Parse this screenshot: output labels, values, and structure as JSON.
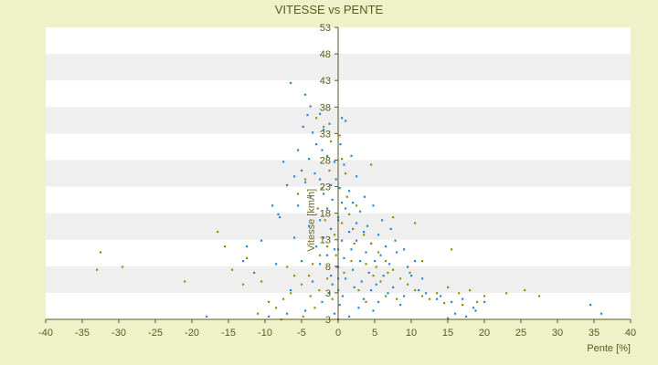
{
  "chart_data": {
    "type": "scatter",
    "title": "VITESSE vs PENTE",
    "xlabel": "Pente [%]",
    "ylabel": "Vitesse [km/h]",
    "xlim": [
      -40,
      40
    ],
    "ylim": [
      3,
      53
    ],
    "x_ticks": [
      -40,
      -35,
      -30,
      -25,
      -20,
      -15,
      -10,
      -5,
      0,
      5,
      10,
      15,
      20,
      25,
      30,
      35,
      40
    ],
    "y_ticks_labeled": [
      "53",
      "48",
      "43",
      "38",
      "33",
      "28",
      "23",
      "18",
      "13",
      "8",
      "3",
      "3"
    ],
    "grid": "horizontal bands",
    "legend": "none",
    "colors": {
      "page_background": "#eef2c8",
      "band_light": "#ffffff",
      "band_dark": "#efefef",
      "text": "#5a5a1e",
      "axis": "#5a5a1e",
      "series_blue": "#2f86d1",
      "series_olive": "#8f8f1a"
    },
    "series": [
      {
        "color_key": "series_blue",
        "points": [
          [
            -6.5,
            43.5
          ],
          [
            -4.5,
            41.5
          ],
          [
            -3.8,
            39.5
          ],
          [
            -4.2,
            38.0
          ],
          [
            -2.5,
            38.2
          ],
          [
            -3.5,
            35.0
          ],
          [
            -2.0,
            35.5
          ],
          [
            -1.2,
            36.5
          ],
          [
            0.5,
            37.5
          ],
          [
            1.0,
            37.0
          ],
          [
            -3.0,
            33.0
          ],
          [
            -2.2,
            32.0
          ],
          [
            -1.5,
            31.0
          ],
          [
            -4.0,
            30.5
          ],
          [
            -0.5,
            30.0
          ],
          [
            0.8,
            29.5
          ],
          [
            -5.0,
            28.5
          ],
          [
            -3.2,
            28.0
          ],
          [
            -2.5,
            27.0
          ],
          [
            -6.0,
            27.5
          ],
          [
            -7.0,
            26.0
          ],
          [
            -4.5,
            26.5
          ],
          [
            -1.0,
            26.0
          ],
          [
            0.2,
            25.5
          ],
          [
            1.5,
            25.0
          ],
          [
            -2.0,
            24.5
          ],
          [
            -3.8,
            24.0
          ],
          [
            -0.8,
            23.5
          ],
          [
            0.5,
            23.0
          ],
          [
            2.0,
            23.0
          ],
          [
            -5.5,
            22.5
          ],
          [
            -1.5,
            22.0
          ],
          [
            1.0,
            22.0
          ],
          [
            3.0,
            21.5
          ],
          [
            -8.0,
            20.5
          ],
          [
            -2.5,
            20.0
          ],
          [
            0.0,
            20.0
          ],
          [
            2.5,
            19.5
          ],
          [
            4.0,
            19.0
          ],
          [
            -4.0,
            19.0
          ],
          [
            -1.0,
            18.5
          ],
          [
            1.5,
            18.0
          ],
          [
            3.5,
            18.0
          ],
          [
            5.5,
            17.5
          ],
          [
            -6.0,
            17.0
          ],
          [
            -2.0,
            17.0
          ],
          [
            0.5,
            16.5
          ],
          [
            2.5,
            16.5
          ],
          [
            4.5,
            16.0
          ],
          [
            6.5,
            15.5
          ],
          [
            -10.5,
            16.5
          ],
          [
            -12.5,
            15.5
          ],
          [
            -3.0,
            15.5
          ],
          [
            -0.5,
            15.0
          ],
          [
            1.8,
            15.0
          ],
          [
            3.8,
            14.5
          ],
          [
            5.8,
            14.0
          ],
          [
            8.0,
            14.5
          ],
          [
            -1.5,
            14.0
          ],
          [
            0.8,
            13.5
          ],
          [
            3.0,
            13.0
          ],
          [
            5.0,
            13.0
          ],
          [
            7.0,
            12.5
          ],
          [
            9.5,
            12.0
          ],
          [
            -5.0,
            13.0
          ],
          [
            -2.5,
            12.5
          ],
          [
            -0.2,
            12.0
          ],
          [
            2.0,
            11.5
          ],
          [
            4.2,
            11.0
          ],
          [
            6.2,
            10.5
          ],
          [
            10.0,
            10.5
          ],
          [
            -8.5,
            12.5
          ],
          [
            -11.5,
            11.0
          ],
          [
            -1.0,
            10.5
          ],
          [
            1.0,
            10.0
          ],
          [
            3.2,
            9.5
          ],
          [
            5.2,
            9.0
          ],
          [
            7.5,
            8.5
          ],
          [
            11.0,
            8.0
          ],
          [
            12.0,
            7.5
          ],
          [
            14.0,
            7.0
          ],
          [
            -3.5,
            9.5
          ],
          [
            -0.8,
            9.0
          ],
          [
            2.2,
            8.5
          ],
          [
            4.5,
            8.0
          ],
          [
            6.8,
            7.5
          ],
          [
            9.0,
            7.0
          ],
          [
            13.5,
            6.5
          ],
          [
            15.5,
            6.0
          ],
          [
            17.0,
            6.5
          ],
          [
            -6.5,
            8.0
          ],
          [
            -1.2,
            7.5
          ],
          [
            0.6,
            7.0
          ],
          [
            3.5,
            6.5
          ],
          [
            5.5,
            6.0
          ],
          [
            8.5,
            5.5
          ],
          [
            18.5,
            5.0
          ],
          [
            20.0,
            6.0
          ],
          [
            -2.2,
            6.0
          ],
          [
            0.2,
            5.5
          ],
          [
            2.8,
            5.0
          ],
          [
            4.8,
            4.5
          ],
          [
            -4.5,
            4.5
          ],
          [
            -0.5,
            4.0
          ],
          [
            1.5,
            3.5
          ],
          [
            -7.0,
            4.0
          ],
          [
            -9.5,
            3.5
          ],
          [
            -10.5,
            2.5
          ],
          [
            -18.0,
            3.5
          ],
          [
            -6.0,
            2.5
          ],
          [
            0.0,
            3.0
          ],
          [
            0.0,
            2.0
          ],
          [
            0.0,
            1.0
          ],
          [
            0.0,
            0.5
          ],
          [
            0.0,
            20.5
          ],
          [
            0.0,
            15.0
          ],
          [
            0.0,
            10.0
          ],
          [
            0.0,
            12.0
          ],
          [
            0.0,
            8.0
          ],
          [
            -0.3,
            27.0
          ],
          [
            16.0,
            4.0
          ],
          [
            17.5,
            3.5
          ],
          [
            18.8,
            4.5
          ],
          [
            15.0,
            3.2
          ],
          [
            14.0,
            2.5
          ],
          [
            34.5,
            5.5
          ],
          [
            36.0,
            4.0
          ],
          [
            -13.0,
            13.0
          ],
          [
            -9.0,
            22.5
          ],
          [
            -8.2,
            21.0
          ],
          [
            -7.5,
            30.0
          ],
          [
            -5.5,
            32.0
          ],
          [
            -4.8,
            36.0
          ],
          [
            0.3,
            33.0
          ],
          [
            1.8,
            31.0
          ],
          [
            2.5,
            27.5
          ],
          [
            3.6,
            24.0
          ],
          [
            4.8,
            22.5
          ],
          [
            6.0,
            20.0
          ],
          [
            7.2,
            18.5
          ],
          [
            7.8,
            16.5
          ],
          [
            9.0,
            15.0
          ],
          [
            10.5,
            13.0
          ],
          [
            11.5,
            10.0
          ]
        ]
      },
      {
        "color_key": "series_olive",
        "points": [
          [
            -33.0,
            11.5
          ],
          [
            -32.5,
            14.5
          ],
          [
            -29.5,
            12.0
          ],
          [
            -21.0,
            9.5
          ],
          [
            -16.5,
            18.0
          ],
          [
            -15.5,
            15.5
          ],
          [
            -13.0,
            9.0
          ],
          [
            -12.5,
            13.5
          ],
          [
            -9.5,
            6.0
          ],
          [
            -8.5,
            5.0
          ],
          [
            -7.5,
            6.5
          ],
          [
            -6.5,
            7.5
          ],
          [
            -5.0,
            9.0
          ],
          [
            -4.0,
            10.5
          ],
          [
            -3.5,
            12.5
          ],
          [
            -2.5,
            14.0
          ],
          [
            -1.5,
            15.5
          ],
          [
            -0.5,
            17.5
          ],
          [
            0.5,
            19.5
          ],
          [
            1.5,
            21.0
          ],
          [
            2.5,
            22.5
          ],
          [
            3.5,
            17.5
          ],
          [
            4.5,
            16.0
          ],
          [
            5.5,
            14.5
          ],
          [
            6.5,
            13.0
          ],
          [
            7.5,
            11.5
          ],
          [
            8.5,
            10.0
          ],
          [
            9.5,
            9.0
          ],
          [
            10.5,
            8.0
          ],
          [
            11.5,
            7.0
          ],
          [
            12.5,
            6.5
          ],
          [
            13.5,
            7.5
          ],
          [
            15.0,
            8.5
          ],
          [
            16.5,
            7.5
          ],
          [
            18.0,
            8.0
          ],
          [
            20.0,
            7.0
          ],
          [
            23.0,
            7.5
          ],
          [
            25.5,
            8.0
          ],
          [
            27.5,
            7.0
          ],
          [
            -3.0,
            37.5
          ],
          [
            -2.0,
            36.0
          ],
          [
            -1.0,
            33.5
          ],
          [
            0.5,
            30.5
          ],
          [
            1.0,
            28.0
          ],
          [
            -4.5,
            27.0
          ],
          [
            -5.5,
            24.5
          ],
          [
            -2.8,
            22.0
          ],
          [
            -1.8,
            20.0
          ],
          [
            4.5,
            29.5
          ],
          [
            7.5,
            20.5
          ],
          [
            10.5,
            19.5
          ],
          [
            11.5,
            13.0
          ],
          [
            9.8,
            11.0
          ],
          [
            15.5,
            15.0
          ],
          [
            2.2,
            16.0
          ],
          [
            3.8,
            12.5
          ],
          [
            5.8,
            9.5
          ],
          [
            6.5,
            7.0
          ],
          [
            8.0,
            6.5
          ],
          [
            -6.0,
            10.5
          ],
          [
            -7.0,
            12.0
          ],
          [
            -10.5,
            9.5
          ],
          [
            -14.5,
            11.5
          ],
          [
            -11.0,
            4.0
          ],
          [
            -7.8,
            3.0
          ],
          [
            -4.8,
            3.5
          ],
          [
            -3.2,
            5.0
          ],
          [
            -0.8,
            6.5
          ],
          [
            0.8,
            11.0
          ],
          [
            1.8,
            13.0
          ],
          [
            2.8,
            8.0
          ],
          [
            3.8,
            6.0
          ],
          [
            4.8,
            10.5
          ],
          [
            5.2,
            12.0
          ],
          [
            6.8,
            11.0
          ],
          [
            -2.2,
            25.5
          ],
          [
            -1.2,
            28.5
          ],
          [
            0.2,
            34.5
          ],
          [
            1.2,
            24.0
          ],
          [
            2.0,
            18.5
          ],
          [
            -0.3,
            14.0
          ],
          [
            -1.5,
            10.0
          ],
          [
            -2.6,
            8.0
          ],
          [
            -3.8,
            7.0
          ],
          [
            17.0,
            5.5
          ],
          [
            19.0,
            6.0
          ],
          [
            14.5,
            5.8
          ]
        ]
      }
    ]
  }
}
